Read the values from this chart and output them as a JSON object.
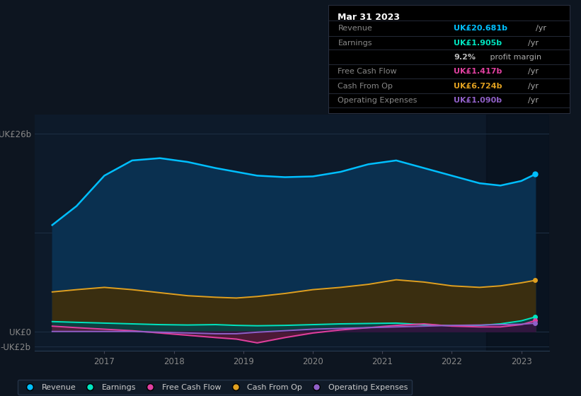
{
  "bg_color": "#0d1520",
  "plot_bg_color": "#0d1a2a",
  "grid_color": "#1e3048",
  "x_years": [
    2016.25,
    2016.6,
    2017.0,
    2017.4,
    2017.8,
    2018.2,
    2018.6,
    2018.9,
    2019.2,
    2019.6,
    2020.0,
    2020.4,
    2020.8,
    2021.2,
    2021.6,
    2022.0,
    2022.4,
    2022.7,
    2023.0,
    2023.2
  ],
  "revenue": [
    14.0,
    16.5,
    20.5,
    22.5,
    22.8,
    22.3,
    21.5,
    21.0,
    20.5,
    20.3,
    20.4,
    21.0,
    22.0,
    22.5,
    21.5,
    20.5,
    19.5,
    19.2,
    19.8,
    20.681
  ],
  "earnings": [
    1.3,
    1.2,
    1.1,
    1.0,
    0.9,
    0.85,
    0.9,
    0.8,
    0.75,
    0.8,
    0.9,
    1.0,
    1.05,
    1.1,
    0.9,
    0.75,
    0.8,
    1.0,
    1.4,
    1.905
  ],
  "free_cash_flow": [
    0.7,
    0.5,
    0.3,
    0.1,
    -0.2,
    -0.5,
    -0.8,
    -1.0,
    -1.5,
    -0.8,
    -0.2,
    0.2,
    0.5,
    0.8,
    1.0,
    0.7,
    0.6,
    0.6,
    0.9,
    1.417
  ],
  "cash_from_op": [
    5.2,
    5.5,
    5.8,
    5.5,
    5.1,
    4.7,
    4.5,
    4.4,
    4.6,
    5.0,
    5.5,
    5.8,
    6.2,
    6.8,
    6.5,
    6.0,
    5.8,
    6.0,
    6.4,
    6.724
  ],
  "operating_expenses": [
    0.0,
    0.0,
    0.0,
    0.0,
    -0.1,
    -0.2,
    -0.3,
    -0.3,
    -0.1,
    0.1,
    0.3,
    0.4,
    0.5,
    0.6,
    0.7,
    0.8,
    0.85,
    0.9,
    0.95,
    1.09
  ],
  "revenue_color": "#00bfff",
  "revenue_fill": "#0a3050",
  "earnings_color": "#00e5c0",
  "earnings_fill": "#0d4040",
  "free_cash_color": "#e040a0",
  "free_cash_fill": "#5c1a3a",
  "cash_op_color": "#e0a020",
  "cash_op_fill": "#3a2e10",
  "op_exp_color": "#9060c8",
  "op_exp_fill": "#2a1540",
  "ylim_min": -2.5,
  "ylim_max": 28.5,
  "xlim_min": 2016.0,
  "xlim_max": 2023.4,
  "x_ticks": [
    2017,
    2018,
    2019,
    2020,
    2021,
    2022,
    2023
  ],
  "ytick_vals": [
    26,
    0,
    -2
  ],
  "ytick_labels": [
    "UK£26b",
    "UK£0",
    "-UK£2b"
  ],
  "grid_lines": [
    26,
    13,
    0,
    -2
  ],
  "highlight_start": 2022.5,
  "legend_items": [
    {
      "label": "Revenue",
      "color": "#00bfff"
    },
    {
      "label": "Earnings",
      "color": "#00e5c0"
    },
    {
      "label": "Free Cash Flow",
      "color": "#e040a0"
    },
    {
      "label": "Cash From Op",
      "color": "#e0a020"
    },
    {
      "label": "Operating Expenses",
      "color": "#9060c8"
    }
  ],
  "info_box": {
    "title": "Mar 31 2023",
    "rows": [
      {
        "label": "Revenue",
        "value": "UK£20.681b",
        "unit": "/yr",
        "val_color": "#00bfff"
      },
      {
        "label": "Earnings",
        "value": "UK£1.905b",
        "unit": "/yr",
        "val_color": "#00e5c0"
      },
      {
        "label": "",
        "value": "9.2%",
        "unit": " profit margin",
        "val_color": "#bbbbbb"
      },
      {
        "label": "Free Cash Flow",
        "value": "UK£1.417b",
        "unit": "/yr",
        "val_color": "#e040a0"
      },
      {
        "label": "Cash From Op",
        "value": "UK£6.724b",
        "unit": "/yr",
        "val_color": "#e0a020"
      },
      {
        "label": "Operating Expenses",
        "value": "UK£1.090b",
        "unit": "/yr",
        "val_color": "#9060c8"
      }
    ]
  }
}
